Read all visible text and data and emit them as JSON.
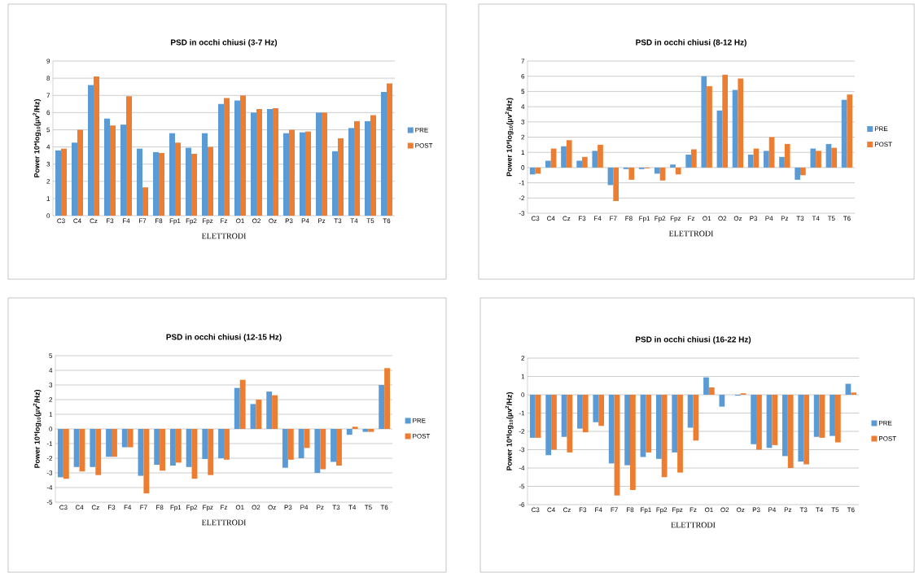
{
  "chart_data": [
    {
      "type": "bar",
      "title": "PSD in occhi chiusi (3-7 Hz)",
      "xlabel": "ELETTRODI",
      "ylabel": "Power 10*log$_{10}$(µv$^{2}$/Hz)",
      "categories": [
        "C3",
        "C4",
        "Cz",
        "F3",
        "F4",
        "F7",
        "F8",
        "Fp1",
        "Fp2",
        "Fpz",
        "Fz",
        "O1",
        "O2",
        "Oz",
        "P3",
        "P4",
        "Pz",
        "T3",
        "T4",
        "T5",
        "T6"
      ],
      "series": [
        {
          "name": "PRE",
          "color": "#5b9bd5",
          "values": [
            3.8,
            4.25,
            7.6,
            5.65,
            5.3,
            3.9,
            3.7,
            4.8,
            3.95,
            4.8,
            6.5,
            6.7,
            6.0,
            6.2,
            4.8,
            4.85,
            6.0,
            3.75,
            5.1,
            5.5,
            7.2
          ]
        },
        {
          "name": "POST",
          "color": "#ed7d31",
          "values": [
            3.9,
            5.0,
            8.1,
            5.25,
            6.95,
            1.65,
            3.65,
            4.25,
            3.6,
            4.0,
            6.85,
            7.0,
            6.2,
            6.25,
            5.0,
            4.9,
            6.0,
            4.5,
            5.5,
            5.85,
            7.7
          ]
        }
      ],
      "ylim": [
        0,
        9
      ],
      "yticks": [
        0,
        1,
        2,
        3,
        4,
        5,
        6,
        7,
        8,
        9
      ],
      "grid": "y",
      "legend": "right"
    },
    {
      "type": "bar",
      "title": "PSD in occhi chiusi (8-12 Hz)",
      "xlabel": "ELETTRODI",
      "ylabel": "Power 10*log$_{10}$(µv$^{2}$/Hz)",
      "categories": [
        "C3",
        "C4",
        "Cz",
        "F3",
        "F4",
        "F7",
        "F8",
        "Fp1",
        "Fp2",
        "Fpz",
        "Fz",
        "O1",
        "O2",
        "Oz",
        "P3",
        "P4",
        "Pz",
        "T3",
        "T4",
        "T5",
        "T6"
      ],
      "series": [
        {
          "name": "PRE",
          "color": "#5b9bd5",
          "values": [
            -0.45,
            0.45,
            1.4,
            0.45,
            1.1,
            -1.15,
            -0.1,
            -0.1,
            -0.4,
            0.2,
            0.85,
            6.0,
            3.75,
            5.1,
            0.85,
            1.1,
            0.7,
            -0.8,
            1.25,
            1.55,
            4.45
          ]
        },
        {
          "name": "POST",
          "color": "#ed7d31",
          "values": [
            -0.4,
            1.25,
            1.8,
            0.7,
            1.5,
            -2.2,
            -0.8,
            -0.05,
            -0.85,
            -0.45,
            1.2,
            5.35,
            6.1,
            5.85,
            1.25,
            2.0,
            1.55,
            -0.5,
            1.1,
            1.3,
            4.8
          ]
        }
      ],
      "ylim": [
        -3,
        7
      ],
      "yticks": [
        -3,
        -2,
        -1,
        0,
        1,
        2,
        3,
        4,
        5,
        6,
        7
      ],
      "grid": "y",
      "legend": "right"
    },
    {
      "type": "bar",
      "title": "PSD in occhi chiusi (12-15 Hz)",
      "xlabel": "ELETTRODI",
      "ylabel": "Power 10*log$_{10}$(µv$^{2}$/Hz)",
      "categories": [
        "C3",
        "C4",
        "Cz",
        "F3",
        "F4",
        "F7",
        "F8",
        "Fp1",
        "Fp2",
        "Fpz",
        "Fz",
        "O1",
        "O2",
        "Oz",
        "P3",
        "P4",
        "Pz",
        "T3",
        "T4",
        "T5",
        "T6"
      ],
      "series": [
        {
          "name": "PRE",
          "color": "#5b9bd5",
          "values": [
            -3.3,
            -2.6,
            -2.6,
            -1.9,
            -1.25,
            -3.2,
            -2.45,
            -2.5,
            -2.6,
            -2.05,
            -2.0,
            2.8,
            1.7,
            2.55,
            -2.65,
            -2.0,
            -3.0,
            -2.25,
            -0.4,
            -0.2,
            3.0
          ]
        },
        {
          "name": "POST",
          "color": "#ed7d31",
          "values": [
            -3.4,
            -2.9,
            -3.15,
            -1.9,
            -1.25,
            -4.4,
            -2.85,
            -2.3,
            -3.4,
            -3.15,
            -2.1,
            3.35,
            2.0,
            2.3,
            -2.1,
            -1.3,
            -2.75,
            -2.5,
            0.15,
            -0.2,
            4.15
          ]
        }
      ],
      "ylim": [
        -5,
        5
      ],
      "yticks": [
        -5,
        -4,
        -3,
        -2,
        -1,
        0,
        1,
        2,
        3,
        4,
        5
      ],
      "grid": "y",
      "legend": "right"
    },
    {
      "type": "bar",
      "title": "PSD in occhi chiusi (16-22 Hz)",
      "xlabel": "ELETTRODI",
      "ylabel": "Power 10*log$_{10}$(µv$^{2}$/Hz)",
      "categories": [
        "C3",
        "C4",
        "Cz",
        "F3",
        "F4",
        "F7",
        "F8",
        "Fp1",
        "Fp2",
        "Fpz",
        "Fz",
        "O1",
        "O2",
        "Oz",
        "P3",
        "P4",
        "Pz",
        "T3",
        "T4",
        "T5",
        "T6"
      ],
      "series": [
        {
          "name": "PRE",
          "color": "#5b9bd5",
          "values": [
            -2.35,
            -3.3,
            -2.3,
            -1.85,
            -1.5,
            -3.75,
            -3.85,
            -3.4,
            -3.5,
            -3.15,
            -1.8,
            0.95,
            -0.65,
            -0.05,
            -2.7,
            -2.9,
            -3.35,
            -3.65,
            -2.3,
            -2.25,
            0.6
          ]
        },
        {
          "name": "POST",
          "color": "#ed7d31",
          "values": [
            -2.35,
            -3.0,
            -3.15,
            -2.05,
            -1.7,
            -5.5,
            -5.2,
            -3.15,
            -4.5,
            -4.25,
            -2.5,
            0.4,
            0.0,
            0.08,
            -3.0,
            -2.75,
            -4.0,
            -3.8,
            -2.35,
            -2.6,
            0.12
          ]
        }
      ],
      "ylim": [
        -6,
        2
      ],
      "yticks": [
        -6,
        -5,
        -4,
        -3,
        -2,
        -1,
        0,
        1,
        2
      ],
      "grid": "y",
      "legend": "right"
    }
  ]
}
